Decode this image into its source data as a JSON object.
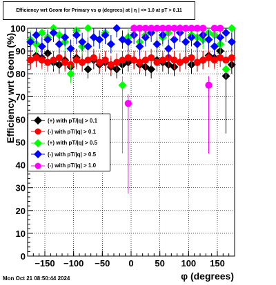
{
  "title": "Efficiency wrt Geom for Primary vs φ (degrees) at | η | <= 1.0 at pT > 0.11",
  "footer": "Mon Oct 21 08:50:44 2024",
  "chart_data": {
    "type": "scatter",
    "xlabel": "φ (degrees)",
    "ylabel": "Efficiency wrt Geom (%)",
    "xlim": [
      -180,
      180
    ],
    "ylim": [
      0,
      100
    ],
    "xticks": [
      -150,
      -100,
      -50,
      0,
      50,
      100,
      150
    ],
    "yticks": [
      0,
      10,
      20,
      30,
      40,
      50,
      60,
      70,
      80,
      90,
      100
    ],
    "grid": true,
    "legend_position": "left-middle",
    "series": [
      {
        "name": "(+) with pT/|q| > 0.1",
        "color": "#000000",
        "marker": "diamond",
        "x": [
          -175,
          -165,
          -155,
          -145,
          -135,
          -125,
          -115,
          -105,
          -95,
          -85,
          -75,
          -65,
          -55,
          -45,
          -35,
          -25,
          -15,
          -5,
          5,
          15,
          25,
          35,
          45,
          55,
          65,
          75,
          85,
          95,
          105,
          115,
          125,
          135,
          145,
          155,
          165,
          175
        ],
        "y": [
          86,
          88,
          87,
          89,
          85,
          84,
          86,
          83,
          87,
          85,
          82,
          86,
          84,
          85,
          83,
          82,
          84,
          85,
          86,
          84,
          83,
          82,
          86,
          85,
          84,
          83,
          85,
          86,
          84,
          85,
          86,
          88,
          87,
          90,
          79,
          84
        ]
      },
      {
        "name": "(-) with pT/|q| > 0.1",
        "color": "#ff0000",
        "marker": "circle",
        "x": [
          -175,
          -165,
          -155,
          -145,
          -135,
          -125,
          -115,
          -105,
          -95,
          -85,
          -75,
          -65,
          -55,
          -45,
          -35,
          -25,
          -15,
          -5,
          5,
          15,
          25,
          35,
          45,
          55,
          65,
          75,
          85,
          95,
          105,
          115,
          125,
          135,
          145,
          155,
          165,
          175
        ],
        "y": [
          86,
          87,
          86,
          85,
          86,
          87,
          85,
          84,
          86,
          85,
          86,
          87,
          85,
          86,
          84,
          85,
          86,
          87,
          86,
          85,
          86,
          87,
          85,
          86,
          87,
          86,
          85,
          86,
          87,
          85,
          86,
          87,
          86,
          87,
          86,
          87
        ]
      },
      {
        "name": "(+) with pT/|q| > 0.5",
        "color": "#00ff00",
        "marker": "diamond",
        "x": [
          -175,
          -165,
          -155,
          -145,
          -135,
          -125,
          -115,
          -105,
          -95,
          -85,
          -75,
          -65,
          -55,
          -45,
          -35,
          -25,
          -15,
          -5,
          5,
          15,
          25,
          35,
          45,
          55,
          65,
          75,
          85,
          95,
          105,
          115,
          125,
          135,
          145,
          155,
          165,
          175
        ],
        "y": [
          95,
          93,
          98,
          96,
          100,
          97,
          94,
          80,
          99,
          92,
          100,
          96,
          95,
          98,
          93,
          100,
          75,
          96,
          100,
          94,
          97,
          99,
          93,
          96,
          98,
          95,
          100,
          94,
          97,
          96,
          95,
          98,
          97,
          93,
          82,
          100
        ]
      },
      {
        "name": "(-) with pT/|q| > 0.5",
        "color": "#0000ff",
        "marker": "diamond",
        "x": [
          -175,
          -165,
          -155,
          -145,
          -135,
          -125,
          -115,
          -105,
          -95,
          -85,
          -75,
          -65,
          -55,
          -45,
          -35,
          -25,
          -15,
          -5,
          5,
          15,
          25,
          35,
          45,
          55,
          65,
          75,
          85,
          95,
          105,
          115,
          125,
          135,
          145,
          155,
          165,
          175
        ],
        "y": [
          94,
          97,
          92,
          95,
          98,
          93,
          96,
          91,
          97,
          94,
          92,
          96,
          95,
          97,
          93,
          100,
          95,
          94,
          97,
          92,
          96,
          98,
          93,
          97,
          91,
          95,
          98,
          94,
          96,
          93,
          97,
          95,
          92,
          96,
          98,
          94
        ]
      },
      {
        "name": "(-) with pT/|q| > 1.0",
        "color": "#ff00ff",
        "marker": "circle",
        "x": [
          -5,
          5,
          15,
          25,
          35,
          45,
          55,
          65,
          75,
          85,
          95,
          105,
          115,
          125,
          135,
          145,
          155
        ],
        "y": [
          67,
          100,
          100,
          100,
          100,
          100,
          100,
          100,
          100,
          100,
          100,
          100,
          100,
          100,
          75,
          100,
          100
        ]
      }
    ]
  }
}
